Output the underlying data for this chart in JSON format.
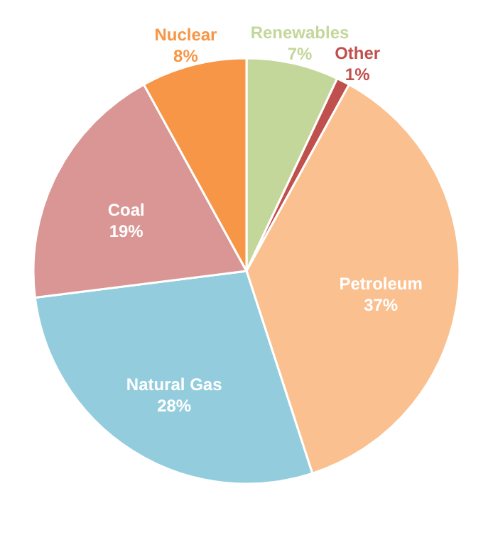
{
  "chart_data": {
    "type": "pie",
    "categories": [
      "Renewables",
      "Other",
      "Petroleum",
      "Natural Gas",
      "Coal",
      "Nuclear"
    ],
    "values": [
      7,
      1,
      37,
      28,
      19,
      8
    ],
    "value_labels": [
      "7%",
      "1%",
      "37%",
      "28%",
      "19%",
      "8%"
    ],
    "colors": [
      "#c4d79b",
      "#c0504d",
      "#fac090",
      "#93cddd",
      "#d99694",
      "#f79646"
    ]
  }
}
